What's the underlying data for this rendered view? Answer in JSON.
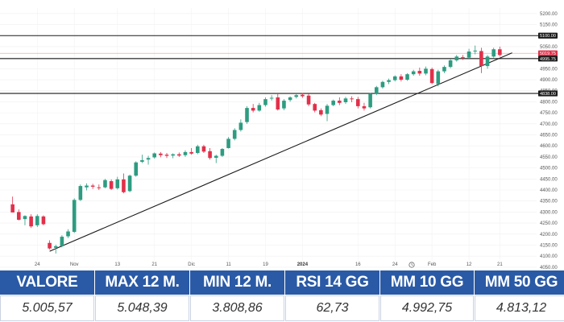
{
  "chart_data": {
    "type": "candlestick",
    "y_ticks": [
      "5200.00",
      "5150.00",
      "5100.00",
      "5050.00",
      "5000.00",
      "4950.00",
      "4900.00",
      "4850.00",
      "4800.00",
      "4750.00",
      "4700.00",
      "4650.00",
      "4600.00",
      "4550.00",
      "4500.00",
      "4450.00",
      "4400.00",
      "4350.00",
      "4300.00",
      "4250.00",
      "4200.00",
      "4150.00",
      "4100.00",
      "4050.00"
    ],
    "ylim": [
      4035,
      5225
    ],
    "x_ticks": [
      {
        "label": "24",
        "index": 4
      },
      {
        "label": "Nov",
        "index": 10
      },
      {
        "label": "13",
        "index": 17
      },
      {
        "label": "21",
        "index": 23
      },
      {
        "label": "Dic",
        "index": 29
      },
      {
        "label": "11",
        "index": 35
      },
      {
        "label": "19",
        "index": 41
      },
      {
        "label": "2024",
        "index": 47,
        "bold": true
      },
      {
        "label": "16",
        "index": 56
      },
      {
        "label": "24",
        "index": 62
      },
      {
        "label": "Feb",
        "index": 68
      },
      {
        "label": "12",
        "index": 74
      },
      {
        "label": "21",
        "index": 79
      }
    ],
    "levels": [
      {
        "value": 5100,
        "label": "5100.00",
        "color": "#1a1a1a"
      },
      {
        "value": 5019.75,
        "label": "5019.75",
        "color": "#e0304a",
        "thin": true
      },
      {
        "value": 4995.75,
        "label": "4995.75",
        "color": "#1a1a1a"
      },
      {
        "value": 4838,
        "label": "4838.00",
        "color": "#1a1a1a"
      }
    ],
    "trendline": {
      "from": {
        "index": 6,
        "value": 4122
      },
      "to": {
        "index": 81,
        "value": 5022
      }
    },
    "colors": {
      "up": "#2e9c80",
      "down": "#e0304a"
    },
    "candles": [
      {
        "o": 4335,
        "h": 4370,
        "l": 4300,
        "c": 4298
      },
      {
        "o": 4300,
        "h": 4312,
        "l": 4262,
        "c": 4265
      },
      {
        "o": 4268,
        "h": 4285,
        "l": 4240,
        "c": 4282
      },
      {
        "o": 4280,
        "h": 4290,
        "l": 4228,
        "c": 4235
      },
      {
        "o": 4240,
        "h": 4290,
        "l": 4232,
        "c": 4282
      },
      {
        "o": 4280,
        "h": 4285,
        "l": 4240,
        "c": 4245
      },
      {
        "o": 4160,
        "h": 4172,
        "l": 4130,
        "c": 4135
      },
      {
        "o": 4138,
        "h": 4152,
        "l": 4112,
        "c": 4145
      },
      {
        "o": 4145,
        "h": 4195,
        "l": 4140,
        "c": 4188
      },
      {
        "o": 4190,
        "h": 4222,
        "l": 4182,
        "c": 4212
      },
      {
        "o": 4210,
        "h": 4362,
        "l": 4205,
        "c": 4355
      },
      {
        "o": 4355,
        "h": 4425,
        "l": 4350,
        "c": 4418
      },
      {
        "o": 4412,
        "h": 4430,
        "l": 4398,
        "c": 4420
      },
      {
        "o": 4420,
        "h": 4428,
        "l": 4405,
        "c": 4415
      },
      {
        "o": 4412,
        "h": 4425,
        "l": 4400,
        "c": 4410
      },
      {
        "o": 4412,
        "h": 4450,
        "l": 4408,
        "c": 4445
      },
      {
        "o": 4440,
        "h": 4448,
        "l": 4400,
        "c": 4405
      },
      {
        "o": 4408,
        "h": 4460,
        "l": 4402,
        "c": 4448
      },
      {
        "o": 4448,
        "h": 4475,
        "l": 4385,
        "c": 4390
      },
      {
        "o": 4395,
        "h": 4470,
        "l": 4390,
        "c": 4465
      },
      {
        "o": 4465,
        "h": 4530,
        "l": 4460,
        "c": 4525
      },
      {
        "o": 4528,
        "h": 4560,
        "l": 4522,
        "c": 4535
      },
      {
        "o": 4538,
        "h": 4555,
        "l": 4515,
        "c": 4545
      },
      {
        "o": 4548,
        "h": 4570,
        "l": 4542,
        "c": 4566
      },
      {
        "o": 4565,
        "h": 4572,
        "l": 4548,
        "c": 4558
      },
      {
        "o": 4560,
        "h": 4568,
        "l": 4545,
        "c": 4555
      },
      {
        "o": 4556,
        "h": 4566,
        "l": 4544,
        "c": 4562
      },
      {
        "o": 4562,
        "h": 4570,
        "l": 4550,
        "c": 4556
      },
      {
        "o": 4558,
        "h": 4580,
        "l": 4550,
        "c": 4572
      },
      {
        "o": 4572,
        "h": 4590,
        "l": 4560,
        "c": 4565
      },
      {
        "o": 4568,
        "h": 4605,
        "l": 4562,
        "c": 4598
      },
      {
        "o": 4598,
        "h": 4605,
        "l": 4568,
        "c": 4574
      },
      {
        "o": 4576,
        "h": 4590,
        "l": 4538,
        "c": 4545
      },
      {
        "o": 4546,
        "h": 4560,
        "l": 4522,
        "c": 4555
      },
      {
        "o": 4555,
        "h": 4590,
        "l": 4550,
        "c": 4586
      },
      {
        "o": 4590,
        "h": 4640,
        "l": 4588,
        "c": 4632
      },
      {
        "o": 4632,
        "h": 4680,
        "l": 4625,
        "c": 4672
      },
      {
        "o": 4672,
        "h": 4720,
        "l": 4665,
        "c": 4705
      },
      {
        "o": 4708,
        "h": 4780,
        "l": 4700,
        "c": 4772
      },
      {
        "o": 4772,
        "h": 4790,
        "l": 4752,
        "c": 4760
      },
      {
        "o": 4760,
        "h": 4795,
        "l": 4755,
        "c": 4785
      },
      {
        "o": 4785,
        "h": 4820,
        "l": 4778,
        "c": 4812
      },
      {
        "o": 4815,
        "h": 4830,
        "l": 4805,
        "c": 4818
      },
      {
        "o": 4820,
        "h": 4838,
        "l": 4760,
        "c": 4765
      },
      {
        "o": 4770,
        "h": 4812,
        "l": 4762,
        "c": 4805
      },
      {
        "o": 4808,
        "h": 4825,
        "l": 4800,
        "c": 4820
      },
      {
        "o": 4822,
        "h": 4835,
        "l": 4815,
        "c": 4830
      },
      {
        "o": 4832,
        "h": 4840,
        "l": 4818,
        "c": 4825
      },
      {
        "o": 4828,
        "h": 4836,
        "l": 4780,
        "c": 4788
      },
      {
        "o": 4790,
        "h": 4795,
        "l": 4752,
        "c": 4760
      },
      {
        "o": 4762,
        "h": 4770,
        "l": 4735,
        "c": 4742
      },
      {
        "o": 4745,
        "h": 4790,
        "l": 4712,
        "c": 4782
      },
      {
        "o": 4785,
        "h": 4810,
        "l": 4780,
        "c": 4805
      },
      {
        "o": 4805,
        "h": 4820,
        "l": 4785,
        "c": 4795
      },
      {
        "o": 4798,
        "h": 4822,
        "l": 4790,
        "c": 4815
      },
      {
        "o": 4815,
        "h": 4825,
        "l": 4798,
        "c": 4812
      },
      {
        "o": 4812,
        "h": 4822,
        "l": 4770,
        "c": 4780
      },
      {
        "o": 4780,
        "h": 4795,
        "l": 4760,
        "c": 4770
      },
      {
        "o": 4775,
        "h": 4840,
        "l": 4770,
        "c": 4835
      },
      {
        "o": 4835,
        "h": 4872,
        "l": 4830,
        "c": 4866
      },
      {
        "o": 4866,
        "h": 4895,
        "l": 4860,
        "c": 4890
      },
      {
        "o": 4890,
        "h": 4905,
        "l": 4880,
        "c": 4898
      },
      {
        "o": 4898,
        "h": 4920,
        "l": 4892,
        "c": 4915
      },
      {
        "o": 4915,
        "h": 4925,
        "l": 4892,
        "c": 4900
      },
      {
        "o": 4900,
        "h": 4930,
        "l": 4895,
        "c": 4925
      },
      {
        "o": 4925,
        "h": 4945,
        "l": 4918,
        "c": 4938
      },
      {
        "o": 4940,
        "h": 4955,
        "l": 4918,
        "c": 4928
      },
      {
        "o": 4928,
        "h": 4960,
        "l": 4920,
        "c": 4950
      },
      {
        "o": 4948,
        "h": 4955,
        "l": 4880,
        "c": 4885
      },
      {
        "o": 4880,
        "h": 4945,
        "l": 4870,
        "c": 4938
      },
      {
        "o": 4938,
        "h": 4965,
        "l": 4930,
        "c": 4958
      },
      {
        "o": 4958,
        "h": 4995,
        "l": 4952,
        "c": 4988
      },
      {
        "o": 4988,
        "h": 5012,
        "l": 4982,
        "c": 5005
      },
      {
        "o": 5002,
        "h": 5012,
        "l": 4990,
        "c": 5000
      },
      {
        "o": 5000,
        "h": 5040,
        "l": 4995,
        "c": 5028
      },
      {
        "o": 5030,
        "h": 5055,
        "l": 5015,
        "c": 5032
      },
      {
        "o": 5030,
        "h": 5045,
        "l": 4930,
        "c": 4962
      },
      {
        "o": 4962,
        "h": 5012,
        "l": 4950,
        "c": 5005
      },
      {
        "o": 5005,
        "h": 5045,
        "l": 5000,
        "c": 5038
      },
      {
        "o": 5038,
        "h": 5050,
        "l": 5005,
        "c": 5012
      }
    ]
  },
  "stats": [
    {
      "label": "VALORE",
      "value": "5.005,57"
    },
    {
      "label": "MAX 12 M.",
      "value": "5.048,39"
    },
    {
      "label": "MIN 12 M.",
      "value": "3.808,86"
    },
    {
      "label": "RSI 14 GG",
      "value": "62,73"
    },
    {
      "label": "MM 10 GG",
      "value": "4.992,75"
    },
    {
      "label": "MM 50 GG",
      "value": "4.813,12"
    }
  ]
}
